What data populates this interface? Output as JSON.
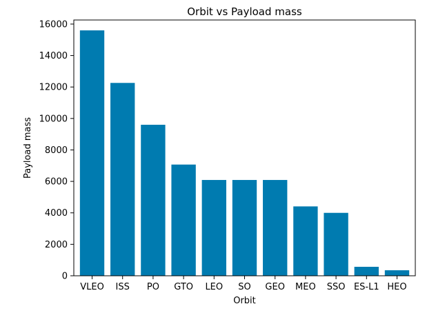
{
  "chart_data": {
    "type": "bar",
    "title": "Orbit vs Payload mass",
    "xlabel": "Orbit",
    "ylabel": "Payload mass",
    "categories": [
      "VLEO",
      "ISS",
      "PO",
      "GTO",
      "LEO",
      "SO",
      "GEO",
      "MEO",
      "SSO",
      "ES-L1",
      "HEO"
    ],
    "values": [
      15600,
      12260,
      9600,
      7070,
      6090,
      6090,
      6090,
      4410,
      4000,
      570,
      350
    ],
    "ylim": [
      0,
      16260
    ],
    "yticks": [
      0,
      2000,
      4000,
      6000,
      8000,
      10000,
      12000,
      14000,
      16000
    ],
    "ytick_labels": [
      "0",
      "2000",
      "4000",
      "6000",
      "8000",
      "10000",
      "12000",
      "14000",
      "16000"
    ],
    "grid": false,
    "bar_color": "#007bb0"
  }
}
